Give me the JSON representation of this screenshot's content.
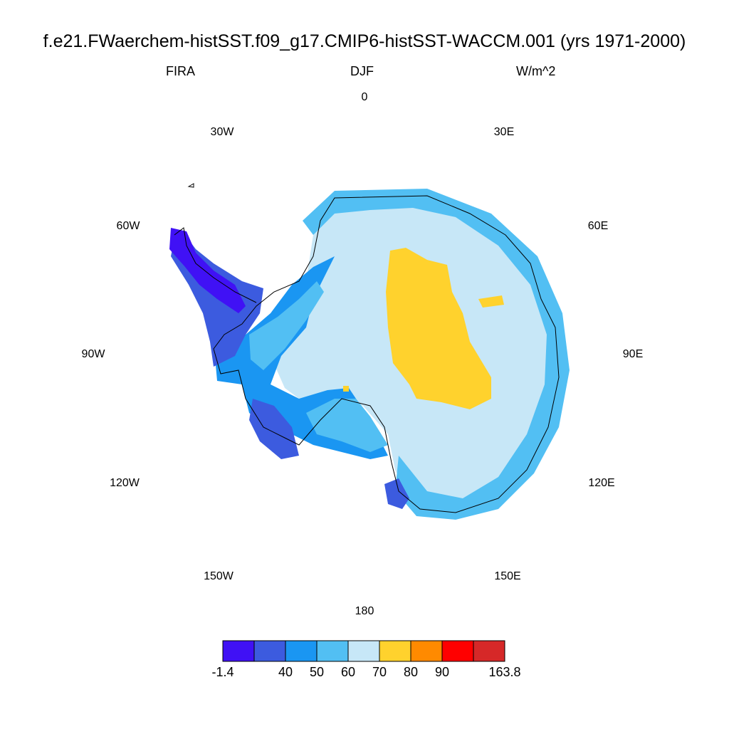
{
  "title": "f.e21.FWaerchem-histSST.f09_g17.CMIP6-histSST-WACCM.001 (yrs 1971-2000)",
  "subtitle_left": "FIRA",
  "subtitle_center": "DJF",
  "subtitle_right": "W/m^2",
  "longitude_labels": [
    "0",
    "30E",
    "60E",
    "90E",
    "120E",
    "150E",
    "180",
    "150W",
    "120W",
    "90W",
    "60W",
    "30W"
  ],
  "colorbar": {
    "colors": [
      "#4011f5",
      "#3c5bdf",
      "#1a96f2",
      "#52bff3",
      "#c7e7f7",
      "#ffd22d",
      "#ff8a00",
      "#ff0000",
      "#d62828"
    ],
    "tick_labels": [
      "-1.4",
      "40",
      "50",
      "60",
      "70",
      "80",
      "90",
      "163.8"
    ]
  },
  "map_layers": [
    {
      "name": "interior-plateau",
      "value_range": "60-70",
      "color": "#c7e7f7"
    },
    {
      "name": "east-antarctic-high",
      "value_range": "70-80",
      "color": "#ffd22d"
    },
    {
      "name": "coastal-slope",
      "value_range": "50-60",
      "color": "#52bff3"
    },
    {
      "name": "west-antarctic-coast",
      "value_range": "40-50",
      "color": "#1a96f2"
    },
    {
      "name": "peninsula-coast",
      "value_range": "-1.4-40",
      "color": "#3c5bdf"
    },
    {
      "name": "peninsula-tip",
      "value_range": "-1.4-40",
      "color": "#4011f5"
    }
  ]
}
